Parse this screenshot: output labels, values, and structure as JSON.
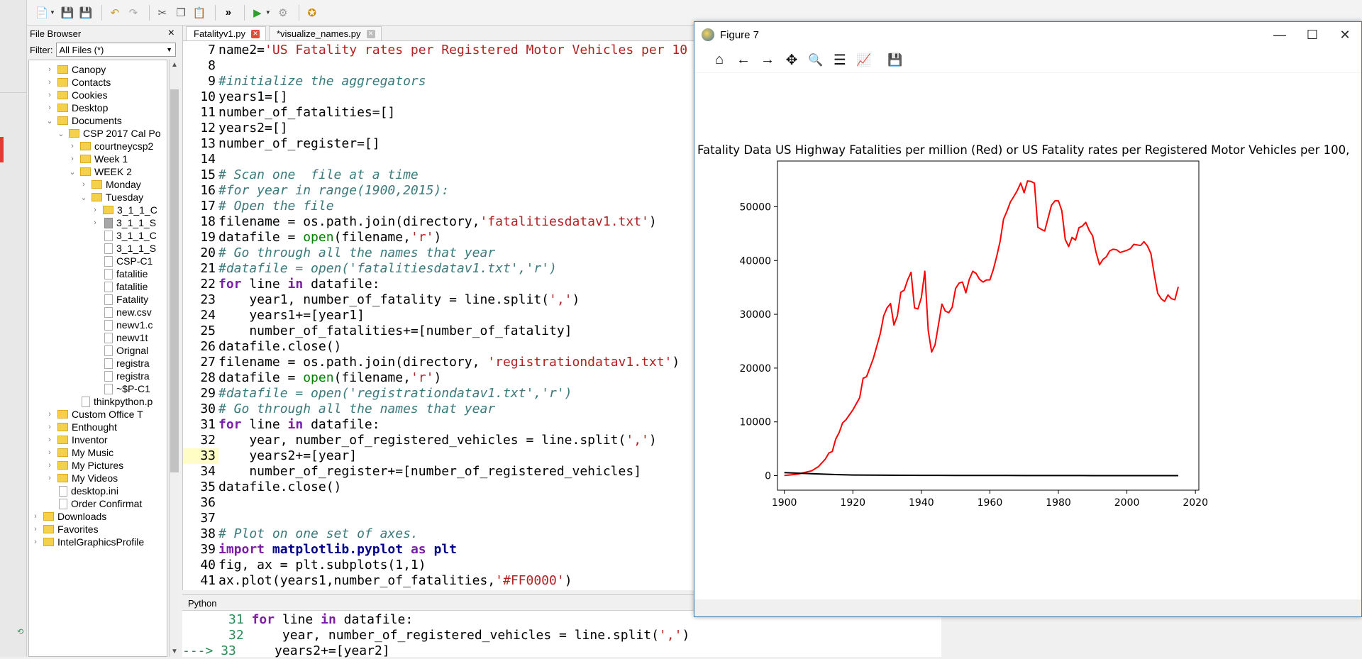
{
  "file_browser": {
    "title": "File Browser",
    "close_glyph": "×",
    "filter_label": "Filter:",
    "filter_value": "All Files (*)",
    "items": [
      {
        "label": "Canopy",
        "type": "folder",
        "level": 1,
        "arrow": "›"
      },
      {
        "label": "Contacts",
        "type": "folder",
        "level": 1,
        "arrow": "›"
      },
      {
        "label": "Cookies",
        "type": "folder",
        "level": 1,
        "arrow": "›"
      },
      {
        "label": "Desktop",
        "type": "folder",
        "level": 1,
        "arrow": "›"
      },
      {
        "label": "Documents",
        "type": "folder",
        "level": 1,
        "arrow": "⌄"
      },
      {
        "label": "CSP 2017 Cal Po",
        "type": "folder",
        "level": 2,
        "arrow": "⌄"
      },
      {
        "label": "courtneycsp2",
        "type": "folder",
        "level": 3,
        "arrow": "›"
      },
      {
        "label": "Week 1",
        "type": "folder",
        "level": 3,
        "arrow": "›"
      },
      {
        "label": "WEEK 2",
        "type": "folder",
        "level": 3,
        "arrow": "⌄"
      },
      {
        "label": "Monday",
        "type": "folder",
        "level": 4,
        "arrow": "›"
      },
      {
        "label": "Tuesday",
        "type": "folder",
        "level": 4,
        "arrow": "⌄"
      },
      {
        "label": "3_1_1_C",
        "type": "folder",
        "level": 5,
        "arrow": "›"
      },
      {
        "label": "3_1_1_S",
        "type": "file-selected",
        "level": 5,
        "arrow": "›"
      },
      {
        "label": "3_1_1_C",
        "type": "file",
        "level": 5,
        "arrow": ""
      },
      {
        "label": "3_1_1_S",
        "type": "file",
        "level": 5,
        "arrow": ""
      },
      {
        "label": "CSP-C1",
        "type": "file",
        "level": 5,
        "arrow": ""
      },
      {
        "label": "fatalitie",
        "type": "file",
        "level": 5,
        "arrow": ""
      },
      {
        "label": "fatalitie",
        "type": "file",
        "level": 5,
        "arrow": ""
      },
      {
        "label": "Fatality",
        "type": "file",
        "level": 5,
        "arrow": ""
      },
      {
        "label": "new.csv",
        "type": "file",
        "level": 5,
        "arrow": ""
      },
      {
        "label": "newv1.c",
        "type": "file",
        "level": 5,
        "arrow": ""
      },
      {
        "label": "newv1t",
        "type": "file",
        "level": 5,
        "arrow": ""
      },
      {
        "label": "Orignal",
        "type": "file",
        "level": 5,
        "arrow": ""
      },
      {
        "label": "registra",
        "type": "file",
        "level": 5,
        "arrow": ""
      },
      {
        "label": "registra",
        "type": "file",
        "level": 5,
        "arrow": ""
      },
      {
        "label": "~$P-C1",
        "type": "file",
        "level": 5,
        "arrow": ""
      },
      {
        "label": "thinkpython.p",
        "type": "file",
        "level": 3,
        "arrow": ""
      },
      {
        "label": "Custom Office T",
        "type": "folder",
        "level": 1,
        "arrow": "›"
      },
      {
        "label": "Enthought",
        "type": "folder",
        "level": 1,
        "arrow": "›"
      },
      {
        "label": "Inventor",
        "type": "folder",
        "level": 1,
        "arrow": "›"
      },
      {
        "label": "My Music",
        "type": "folder",
        "level": 1,
        "arrow": "›"
      },
      {
        "label": "My Pictures",
        "type": "folder",
        "level": 1,
        "arrow": "›"
      },
      {
        "label": "My Videos",
        "type": "folder",
        "level": 1,
        "arrow": "›"
      },
      {
        "label": "desktop.ini",
        "type": "file",
        "level": 1,
        "arrow": ""
      },
      {
        "label": "Order Confirmat",
        "type": "file",
        "level": 1,
        "arrow": ""
      },
      {
        "label": "Downloads",
        "type": "folder",
        "level": 0,
        "arrow": "›"
      },
      {
        "label": "Favorites",
        "type": "folder",
        "level": 0,
        "arrow": "›"
      },
      {
        "label": "IntelGraphicsProfile",
        "type": "folder",
        "level": 0,
        "arrow": "›"
      }
    ]
  },
  "editor": {
    "tabs": [
      {
        "label": "Fatalityv1.py",
        "active": true
      },
      {
        "label": "*visualize_names.py",
        "active": false
      }
    ],
    "lines": [
      {
        "n": "7",
        "html": "name2=<span class=\"str\">'US Fatality rates per Registered Motor Vehicles per 10</span>"
      },
      {
        "n": "8",
        "html": ""
      },
      {
        "n": "9",
        "html": "<span class=\"com\">#initialize the aggregators</span>"
      },
      {
        "n": "10",
        "html": "years1=[]"
      },
      {
        "n": "11",
        "html": "number_of_fatalities=[]"
      },
      {
        "n": "12",
        "html": "years2=[]"
      },
      {
        "n": "13",
        "html": "number_of_register=[]"
      },
      {
        "n": "14",
        "html": ""
      },
      {
        "n": "15",
        "html": "<span class=\"com\"># Scan one  file at a time</span>"
      },
      {
        "n": "16",
        "html": "<span class=\"com\">#for year in range(1900,2015):</span>"
      },
      {
        "n": "17",
        "html": "<span class=\"com\"># Open the file</span>"
      },
      {
        "n": "18",
        "html": "filename = os.path.join(directory,<span class=\"str\">'fatalitiesdatav1.txt'</span>)"
      },
      {
        "n": "19",
        "html": "datafile = <span class=\"bi\">open</span>(filename,<span class=\"str\">'r'</span>)"
      },
      {
        "n": "20",
        "html": "<span class=\"com\"># Go through all the names that year</span>"
      },
      {
        "n": "21",
        "html": "<span class=\"com\">#datafile = open('fatalitiesdatav1.txt','r')</span>"
      },
      {
        "n": "22",
        "html": "<span class=\"kw\">for</span> line <span class=\"kw\">in</span> datafile:"
      },
      {
        "n": "23",
        "html": "    year1, number_of_fatality = line.split(<span class=\"str\">','</span>)"
      },
      {
        "n": "24",
        "html": "    years1+=[year1]"
      },
      {
        "n": "25",
        "html": "    number_of_fatalities+=[number_of_fatality]"
      },
      {
        "n": "26",
        "html": "datafile.close()"
      },
      {
        "n": "27",
        "html": "filename = os.path.join(directory, <span class=\"str\">'registrationdatav1.txt'</span>)"
      },
      {
        "n": "28",
        "html": "datafile = <span class=\"bi\">open</span>(filename,<span class=\"str\">'r'</span>)"
      },
      {
        "n": "29",
        "html": "<span class=\"com\">#datafile = open('registrationdatav1.txt','r')</span>"
      },
      {
        "n": "30",
        "html": "<span class=\"com\"># Go through all the names that year</span>"
      },
      {
        "n": "31",
        "html": "<span class=\"kw\">for</span> line <span class=\"kw\">in</span> datafile:"
      },
      {
        "n": "32",
        "html": "    year, number_of_registered_vehicles = line.split(<span class=\"str\">','</span>)"
      },
      {
        "n": "33",
        "html": "    years2+=[year]",
        "hl": true
      },
      {
        "n": "34",
        "html": "    number_of_register+=[number_of_registered_vehicles]"
      },
      {
        "n": "35",
        "html": "datafile.close()"
      },
      {
        "n": "36",
        "html": ""
      },
      {
        "n": "37",
        "html": ""
      },
      {
        "n": "38",
        "html": "<span class=\"com\"># Plot on one set of axes.</span>"
      },
      {
        "n": "39",
        "html": "<span class=\"kw\">import</span> <span class=\"kw2\">matplotlib.pyplot</span> <span class=\"kw\">as</span> <span class=\"kw2\">plt</span>"
      },
      {
        "n": "40",
        "html": "fig, ax = plt.subplots(1,1)"
      },
      {
        "n": "41",
        "html": "ax.plot(years1,number_of_fatalities,<span class=\"str\">'#FF0000'</span>)"
      }
    ]
  },
  "python_panel": {
    "label": "Python",
    "lines": [
      {
        "prefix": "      ",
        "n": "31",
        "html": " <span class=\"kw\">for</span> line <span class=\"kw\">in</span> datafile:"
      },
      {
        "prefix": "      ",
        "n": "32",
        "html": "     year, number_of_registered_vehicles = line.split(<span class=\"str\">','</span>)"
      },
      {
        "prefix": "---> ",
        "n": "33",
        "html": "     years2+=[year2]"
      }
    ]
  },
  "figure": {
    "window_title": "Figure 7",
    "controls": {
      "minimize": "—",
      "maximize": "☐",
      "close": "✕"
    },
    "toolbar": [
      {
        "name": "home-icon",
        "glyph": "⌂"
      },
      {
        "name": "back-arrow-icon",
        "glyph": "←"
      },
      {
        "name": "forward-arrow-icon",
        "glyph": "→"
      },
      {
        "name": "pan-icon",
        "glyph": "✥"
      },
      {
        "name": "zoom-icon",
        "glyph": "🔍"
      },
      {
        "name": "configure-subplots-icon",
        "glyph": "☰"
      },
      {
        "name": "edit-axis-icon",
        "glyph": "📈"
      },
      {
        "name": "save-icon",
        "glyph": "💾"
      }
    ]
  },
  "chart_data": {
    "type": "line",
    "title": "Fatality Data US Highway Fatalities per million (Red) or US Fatality rates per Registered Motor Vehicles per 100,",
    "xlabel": "",
    "ylabel": "",
    "xlim": [
      1898,
      2021
    ],
    "ylim": [
      -2700,
      58500
    ],
    "xticks": [
      1900,
      1920,
      1940,
      1960,
      1980,
      2000,
      2020
    ],
    "yticks": [
      0,
      10000,
      20000,
      30000,
      40000,
      50000
    ],
    "grid": false,
    "series": [
      {
        "color": "#FF0000",
        "x": [
          1900,
          1902,
          1904,
          1906,
          1908,
          1910,
          1912,
          1913,
          1914,
          1915,
          1916,
          1917,
          1918,
          1920,
          1922,
          1923,
          1924,
          1926,
          1928,
          1929,
          1930,
          1931,
          1932,
          1933,
          1934,
          1935,
          1936,
          1937,
          1938,
          1939,
          1940,
          1941,
          1942,
          1943,
          1944,
          1945,
          1946,
          1947,
          1948,
          1949,
          1950,
          1951,
          1952,
          1953,
          1954,
          1955,
          1956,
          1957,
          1958,
          1959,
          1960,
          1961,
          1962,
          1963,
          1964,
          1965,
          1966,
          1967,
          1968,
          1969,
          1970,
          1971,
          1972,
          1973,
          1974,
          1975,
          1976,
          1977,
          1978,
          1979,
          1980,
          1981,
          1982,
          1983,
          1984,
          1985,
          1986,
          1987,
          1988,
          1989,
          1990,
          1991,
          1992,
          1993,
          1994,
          1995,
          1996,
          1997,
          1998,
          1999,
          2000,
          2001,
          2002,
          2003,
          2004,
          2005,
          2006,
          2007,
          2008,
          2009,
          2010,
          2011,
          2012,
          2013,
          2014,
          2015
        ],
        "y": [
          36,
          150,
          300,
          600,
          900,
          1700,
          3100,
          4200,
          4500,
          6800,
          8000,
          9800,
          10400,
          12200,
          14500,
          18100,
          18400,
          21800,
          26400,
          29700,
          31200,
          32000,
          28000,
          29700,
          34100,
          34500,
          36400,
          37800,
          31200,
          31000,
          33100,
          38000,
          27000,
          23000,
          24300,
          28100,
          31900,
          30600,
          30300,
          31300,
          34800,
          35800,
          36000,
          34000,
          36500,
          38000,
          37600,
          36500,
          36000,
          36400,
          36400,
          38300,
          40800,
          43600,
          47700,
          49200,
          50900,
          51900,
          53000,
          54400,
          52600,
          54800,
          54700,
          54400,
          46200,
          45800,
          45500,
          47900,
          50300,
          51100,
          51100,
          49300,
          43900,
          42600,
          44300,
          43800,
          46100,
          46400,
          47100,
          45600,
          44600,
          41500,
          39200,
          40200,
          40700,
          41800,
          42100,
          42000,
          41500,
          41700,
          41900,
          42200,
          43000,
          42900,
          42800,
          43500,
          42700,
          41300,
          37400,
          33900,
          32900,
          32400,
          33600,
          32900,
          32700,
          35100
        ]
      },
      {
        "color": "#000000",
        "x": [
          1900,
          1905,
          1910,
          1915,
          1920,
          1925,
          1930,
          1935,
          1940,
          1945,
          1950,
          1955,
          1960,
          1965,
          1970,
          1975,
          1980,
          1985,
          1990,
          1995,
          2000,
          2005,
          2010,
          2015
        ],
        "y": [
          560,
          420,
          320,
          200,
          120,
          90,
          80,
          70,
          60,
          55,
          40,
          35,
          30,
          25,
          20,
          18,
          15,
          12,
          10,
          9,
          8,
          8,
          7,
          7
        ]
      }
    ]
  }
}
